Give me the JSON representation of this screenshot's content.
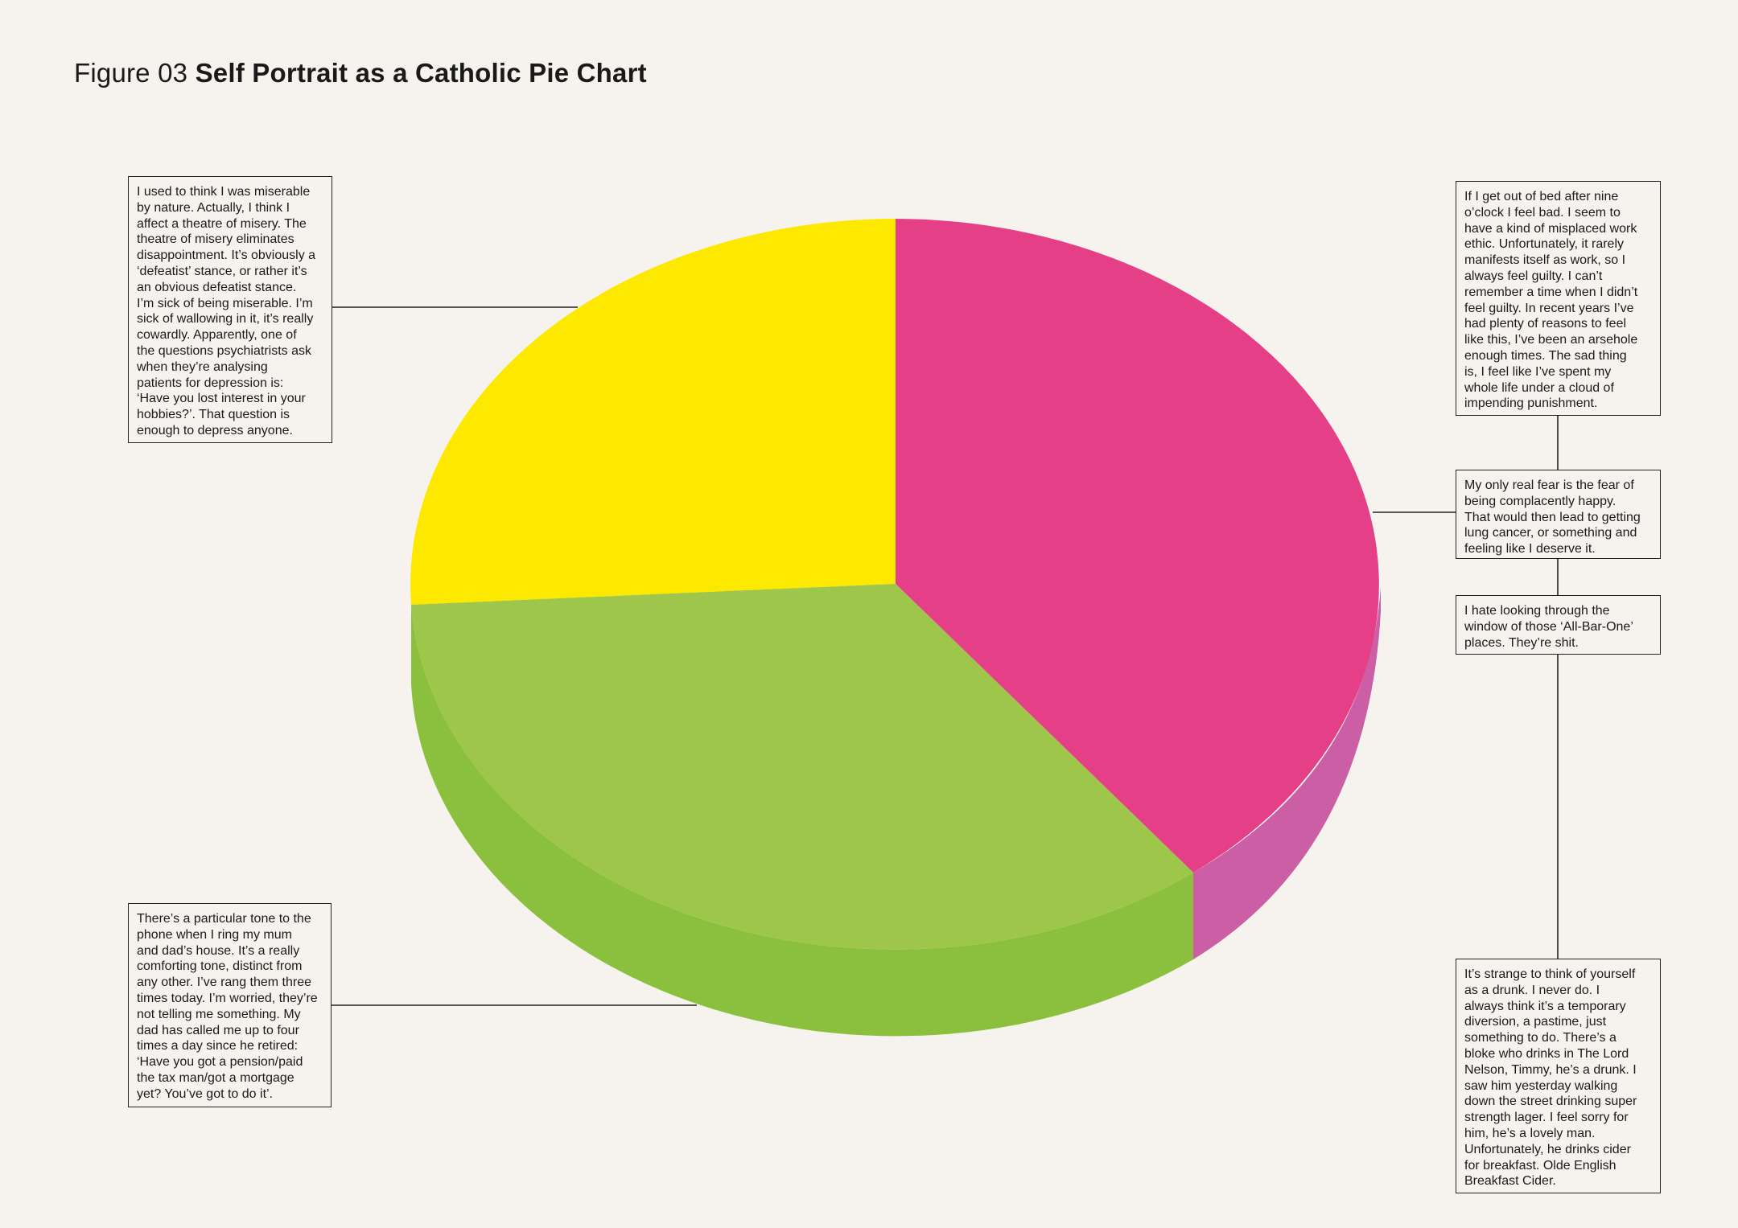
{
  "title": {
    "figure": "Figure 03",
    "name": "Self Portrait as a Catholic Pie Chart"
  },
  "chart_data": {
    "type": "pie",
    "style": "3d-tilted",
    "title": "Self Portrait as a Catholic Pie Chart",
    "legend": "none (annotation boxes with leader lines)",
    "slices": [
      {
        "color": "#e43f87",
        "side_color": "#cc5ea6",
        "fraction": 0.4,
        "annotations": [
          "bed",
          "fear",
          "bar",
          "drunk"
        ]
      },
      {
        "color": "#9ec64b",
        "side_color": "#8ac03d",
        "fraction": 0.345,
        "annotations": [
          "phone"
        ]
      },
      {
        "color": "#fde800",
        "side_color": "#e6cf00",
        "fraction": 0.255,
        "annotations": [
          "misery"
        ]
      }
    ]
  },
  "notes": {
    "misery": "I used to think I was miserable\nby nature. Actually, I think I\naffect a theatre of misery. The\ntheatre of misery eliminates\ndisappointment. It’s obviously a\n‘defeatist’ stance, or rather it’s\nan obvious defeatist stance.\nI’m sick of being miserable. I’m\nsick of wallowing in it, it’s really\ncowardly. Apparently, one of\nthe questions psychiatrists ask\nwhen they’re analysing\npatients for depression is:\n‘Have you lost interest in your\nhobbies?’. That question is\nenough to depress anyone.",
    "phone": "There’s a particular tone to the\nphone when I ring my mum\nand dad’s house. It’s a really\ncomforting tone, distinct from\nany other. I’ve rang them three\ntimes today. I’m worried, they’re\nnot telling me something. My\ndad has called me up to four\ntimes a day since he retired:\n‘Have you got a pension/paid\nthe tax man/got a mortgage\nyet? You’ve got to do it’.",
    "bed": "If I get out of bed after nine\no’clock I feel bad. I seem to\nhave a kind of misplaced work\nethic. Unfortunately, it rarely\nmanifests itself as work, so I\nalways feel guilty. I can’t\nremember a time when I didn’t\nfeel guilty. In recent years I’ve\nhad plenty of reasons to feel\nlike this, I’ve been an arsehole\nenough times. The sad thing\nis, I feel like I’ve spent my\nwhole life under a cloud of\nimpending punishment.",
    "fear": "My only real fear is the fear of\nbeing complacently happy.\nThat would then lead to getting\nlung cancer, or something and\nfeeling like I deserve it.",
    "bar": "I hate looking through the\nwindow of those ‘All-Bar-One’\nplaces. They’re shit.",
    "drunk": "It’s strange to think of yourself\nas a drunk. I never do. I\nalways think it’s a temporary\ndiversion, a pastime, just\nsomething to do. There’s a\nbloke who drinks in The Lord\nNelson, Timmy, he’s a drunk. I\nsaw him yesterday walking\ndown the street drinking super\nstrength lager. I feel sorry for\nhim, he’s a lovely man.\nUnfortunately, he drinks cider\nfor breakfast. Olde English\nBreakfast Cider."
  }
}
